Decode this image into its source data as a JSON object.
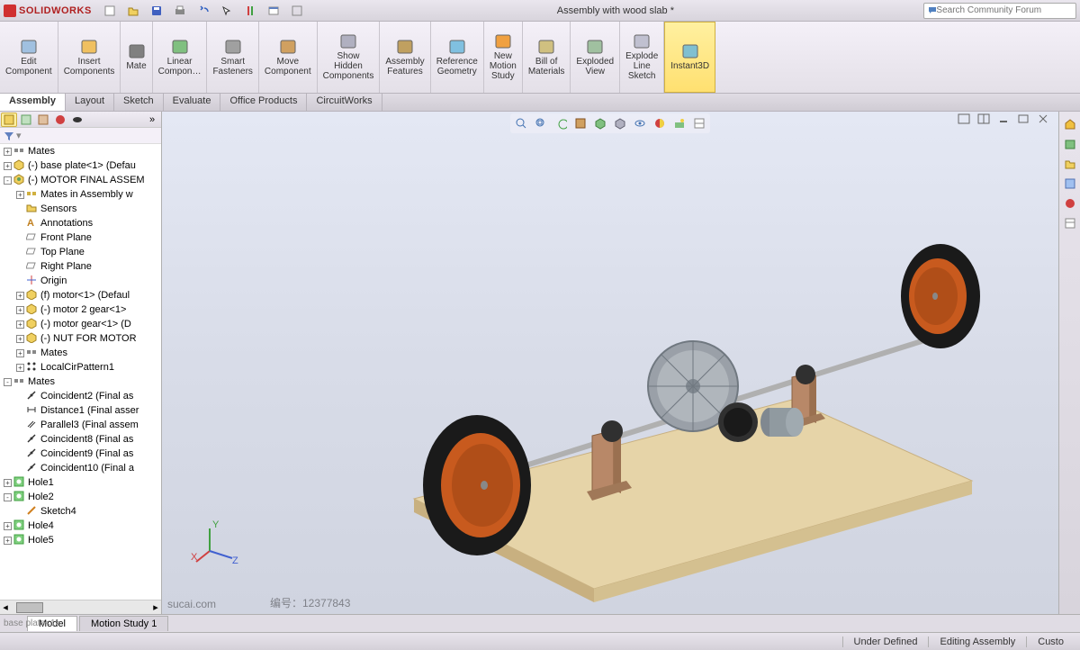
{
  "app": {
    "name": "SOLIDWORKS",
    "title": "Assembly with wood slab *"
  },
  "search": {
    "placeholder": "Search Community Forum"
  },
  "ribbon": [
    {
      "id": "edit-component",
      "label": "Edit\nComponent"
    },
    {
      "id": "insert-components",
      "label": "Insert\nComponents"
    },
    {
      "id": "mate",
      "label": "Mate"
    },
    {
      "id": "linear-pattern",
      "label": "Linear\nCompon…"
    },
    {
      "id": "smart-fasteners",
      "label": "Smart\nFasteners"
    },
    {
      "id": "move-component",
      "label": "Move\nComponent"
    },
    {
      "id": "show-hidden",
      "label": "Show\nHidden\nComponents"
    },
    {
      "id": "assembly-features",
      "label": "Assembly\nFeatures"
    },
    {
      "id": "reference-geometry",
      "label": "Reference\nGeometry"
    },
    {
      "id": "new-motion-study",
      "label": "New\nMotion\nStudy"
    },
    {
      "id": "bom",
      "label": "Bill of\nMaterials"
    },
    {
      "id": "exploded-view",
      "label": "Exploded\nView"
    },
    {
      "id": "explode-line-sketch",
      "label": "Explode\nLine\nSketch"
    },
    {
      "id": "instant3d",
      "label": "Instant3D",
      "active": true
    }
  ],
  "tabs": [
    "Assembly",
    "Layout",
    "Sketch",
    "Evaluate",
    "Office Products",
    "CircuitWorks"
  ],
  "activeTab": "Assembly",
  "tree": [
    {
      "indent": 0,
      "exp": "+",
      "icon": "mates",
      "label": "Mates"
    },
    {
      "indent": 0,
      "exp": "+",
      "icon": "part-y",
      "label": "(-) base plate<1> (Defau"
    },
    {
      "indent": 0,
      "exp": "-",
      "icon": "asm-y",
      "label": "(-) MOTOR FINAL ASSEM"
    },
    {
      "indent": 1,
      "exp": "+",
      "icon": "mates-y",
      "label": "Mates in Assembly w"
    },
    {
      "indent": 1,
      "exp": "",
      "icon": "folder",
      "label": "Sensors"
    },
    {
      "indent": 1,
      "exp": "",
      "icon": "ann",
      "label": "Annotations"
    },
    {
      "indent": 1,
      "exp": "",
      "icon": "plane",
      "label": "Front Plane"
    },
    {
      "indent": 1,
      "exp": "",
      "icon": "plane",
      "label": "Top Plane"
    },
    {
      "indent": 1,
      "exp": "",
      "icon": "plane",
      "label": "Right Plane"
    },
    {
      "indent": 1,
      "exp": "",
      "icon": "origin",
      "label": "Origin"
    },
    {
      "indent": 1,
      "exp": "+",
      "icon": "part-y",
      "label": "(f) motor<1> (Defaul"
    },
    {
      "indent": 1,
      "exp": "+",
      "icon": "part-y",
      "label": "(-) motor 2 gear<1>"
    },
    {
      "indent": 1,
      "exp": "+",
      "icon": "part-y",
      "label": "(-) motor gear<1> (D"
    },
    {
      "indent": 1,
      "exp": "+",
      "icon": "part-y",
      "label": "(-) NUT FOR MOTOR"
    },
    {
      "indent": 1,
      "exp": "+",
      "icon": "mates",
      "label": "Mates"
    },
    {
      "indent": 1,
      "exp": "+",
      "icon": "pattern",
      "label": "LocalCirPattern1"
    },
    {
      "indent": 0,
      "exp": "-",
      "icon": "mates",
      "label": "Mates"
    },
    {
      "indent": 1,
      "exp": "",
      "icon": "coinc",
      "label": "Coincident2 (Final as"
    },
    {
      "indent": 1,
      "exp": "",
      "icon": "dist",
      "label": "Distance1 (Final asser"
    },
    {
      "indent": 1,
      "exp": "",
      "icon": "para",
      "label": "Parallel3 (Final assem"
    },
    {
      "indent": 1,
      "exp": "",
      "icon": "coinc",
      "label": "Coincident8 (Final as"
    },
    {
      "indent": 1,
      "exp": "",
      "icon": "coinc",
      "label": "Coincident9 (Final as"
    },
    {
      "indent": 1,
      "exp": "",
      "icon": "coinc",
      "label": "Coincident10 (Final a"
    },
    {
      "indent": 0,
      "exp": "+",
      "icon": "hole",
      "label": "Hole1"
    },
    {
      "indent": 0,
      "exp": "-",
      "icon": "hole",
      "label": "Hole2"
    },
    {
      "indent": 1,
      "exp": "",
      "icon": "sketch",
      "label": "Sketch4"
    },
    {
      "indent": 0,
      "exp": "+",
      "icon": "hole",
      "label": "Hole4"
    },
    {
      "indent": 0,
      "exp": "+",
      "icon": "hole",
      "label": "Hole5"
    }
  ],
  "bottomTabs": [
    "Model",
    "Motion Study 1"
  ],
  "activeBottomTab": "Model",
  "footerLeftFaint": "base plate<1>",
  "status": {
    "left": "",
    "mid1": "Under Defined",
    "mid2": "Editing Assembly",
    "right": "Custo"
  },
  "watermark": {
    "source": "sucai.com",
    "id": "编号：12377843"
  },
  "triad": {
    "x": "X",
    "y": "Y",
    "z": "Z"
  },
  "colors": {
    "wood": "#e6d4a8",
    "woodDark": "#c8b080",
    "tireBlack": "#1a1a1a",
    "wheelHub": "#c85a1e",
    "bracket": "#b88868",
    "gearGray": "#9aa0a8",
    "gearDark": "#303030",
    "axle": "#b0b0b0",
    "motor": "#808890"
  }
}
